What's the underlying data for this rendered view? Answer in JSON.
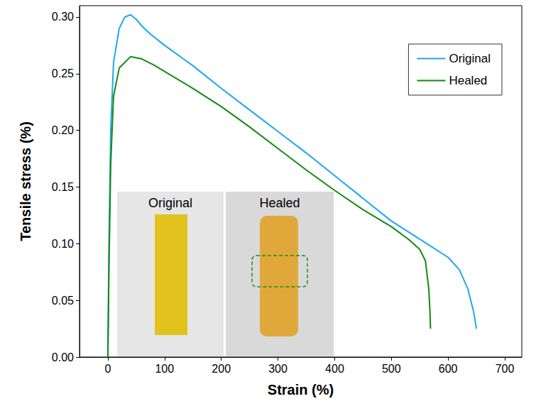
{
  "chart_data": {
    "type": "line",
    "x_label": "Strain (%)",
    "y_label": "Tensile stress (%)",
    "xlim": [
      -50,
      730
    ],
    "xticks": [
      0,
      100,
      200,
      300,
      400,
      500,
      600,
      700
    ],
    "ylim": [
      0,
      0.31
    ],
    "yticks": [
      {
        "value": 0,
        "label": "0.00"
      },
      {
        "value": 0.05,
        "label": "0.05"
      },
      {
        "value": 0.1,
        "label": "0.10"
      },
      {
        "value": 0.15,
        "label": "0.15"
      },
      {
        "value": 0.2,
        "label": "0.20"
      },
      {
        "value": 0.25,
        "label": "0.25"
      },
      {
        "value": 0.3,
        "label": "0.30"
      }
    ],
    "grid": false,
    "legend": "upper right",
    "series": [
      {
        "name": "Original",
        "color": "#1ea7f0",
        "x": [
          0,
          2,
          5,
          10,
          20,
          30,
          40,
          50,
          60,
          75,
          100,
          150,
          200,
          250,
          300,
          350,
          400,
          450,
          500,
          550,
          600,
          620,
          635,
          645,
          650
        ],
        "values": [
          0,
          0.1,
          0.2,
          0.26,
          0.29,
          0.3,
          0.302,
          0.298,
          0.292,
          0.285,
          0.275,
          0.257,
          0.237,
          0.218,
          0.199,
          0.18,
          0.16,
          0.14,
          0.12,
          0.104,
          0.088,
          0.077,
          0.06,
          0.04,
          0.025
        ]
      },
      {
        "name": "Healed",
        "color": "#138a13",
        "x": [
          0,
          2,
          5,
          10,
          20,
          40,
          60,
          80,
          100,
          150,
          200,
          250,
          300,
          350,
          400,
          450,
          500,
          530,
          550,
          560,
          566,
          568,
          569
        ],
        "values": [
          0,
          0.08,
          0.17,
          0.23,
          0.255,
          0.265,
          0.263,
          0.258,
          0.252,
          0.237,
          0.221,
          0.203,
          0.184,
          0.165,
          0.147,
          0.13,
          0.115,
          0.104,
          0.095,
          0.085,
          0.06,
          0.04,
          0.025
        ]
      }
    ],
    "annotations": [
      {
        "text": "Original"
      },
      {
        "text": "Healed"
      }
    ]
  }
}
